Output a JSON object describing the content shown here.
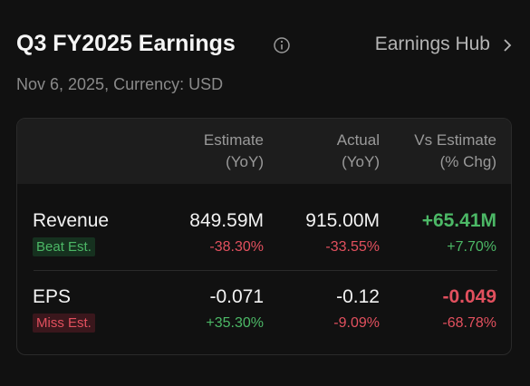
{
  "header": {
    "title": "Q3 FY2025 Earnings",
    "link": "Earnings Hub",
    "subtitle": "Nov 6, 2025, Currency: USD"
  },
  "table": {
    "columns": [
      {
        "line1": "Estimate",
        "line2": "(YoY)"
      },
      {
        "line1": "Actual",
        "line2": "(YoY)"
      },
      {
        "line1": "Vs Estimate",
        "line2": "(% Chg)"
      }
    ],
    "rows": [
      {
        "label": "Revenue",
        "badge": "Beat Est.",
        "estimate": "849.59M",
        "estimate_yoy": "-38.30%",
        "actual": "915.00M",
        "actual_yoy": "-33.55%",
        "vs": "+65.41M",
        "vs_pct": "+7.70%"
      },
      {
        "label": "EPS",
        "badge": "Miss Est.",
        "estimate": "-0.071",
        "estimate_yoy": "+35.30%",
        "actual": "-0.12",
        "actual_yoy": "-9.09%",
        "vs": "-0.049",
        "vs_pct": "-68.78%"
      }
    ]
  }
}
